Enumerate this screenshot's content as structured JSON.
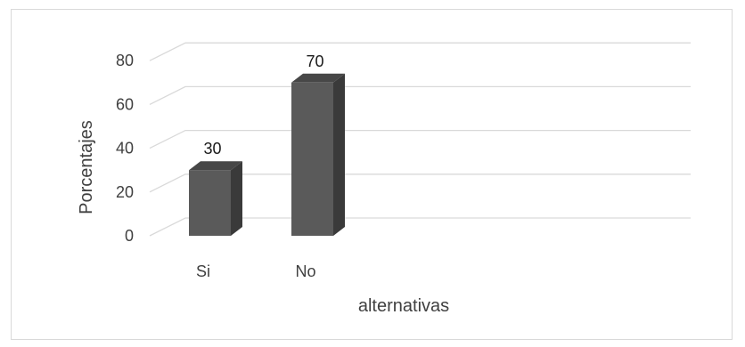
{
  "chart_data": {
    "type": "bar",
    "title": "",
    "categories": [
      "Si",
      "No"
    ],
    "values": [
      30,
      70
    ],
    "data_labels": [
      "30",
      "70"
    ],
    "xlabel": "alternativas",
    "ylabel": "Porcentajes",
    "ylim": [
      0,
      80
    ],
    "yticks": [
      "0",
      "20",
      "40",
      "60",
      "80"
    ],
    "grid": true,
    "legend": "none",
    "style": "3d-column",
    "colors": {
      "bar_front": "#5a5a5a",
      "bar_side": "#3a3a3a",
      "bar_top": "#474747",
      "gridline": "#d9d9d9"
    }
  }
}
